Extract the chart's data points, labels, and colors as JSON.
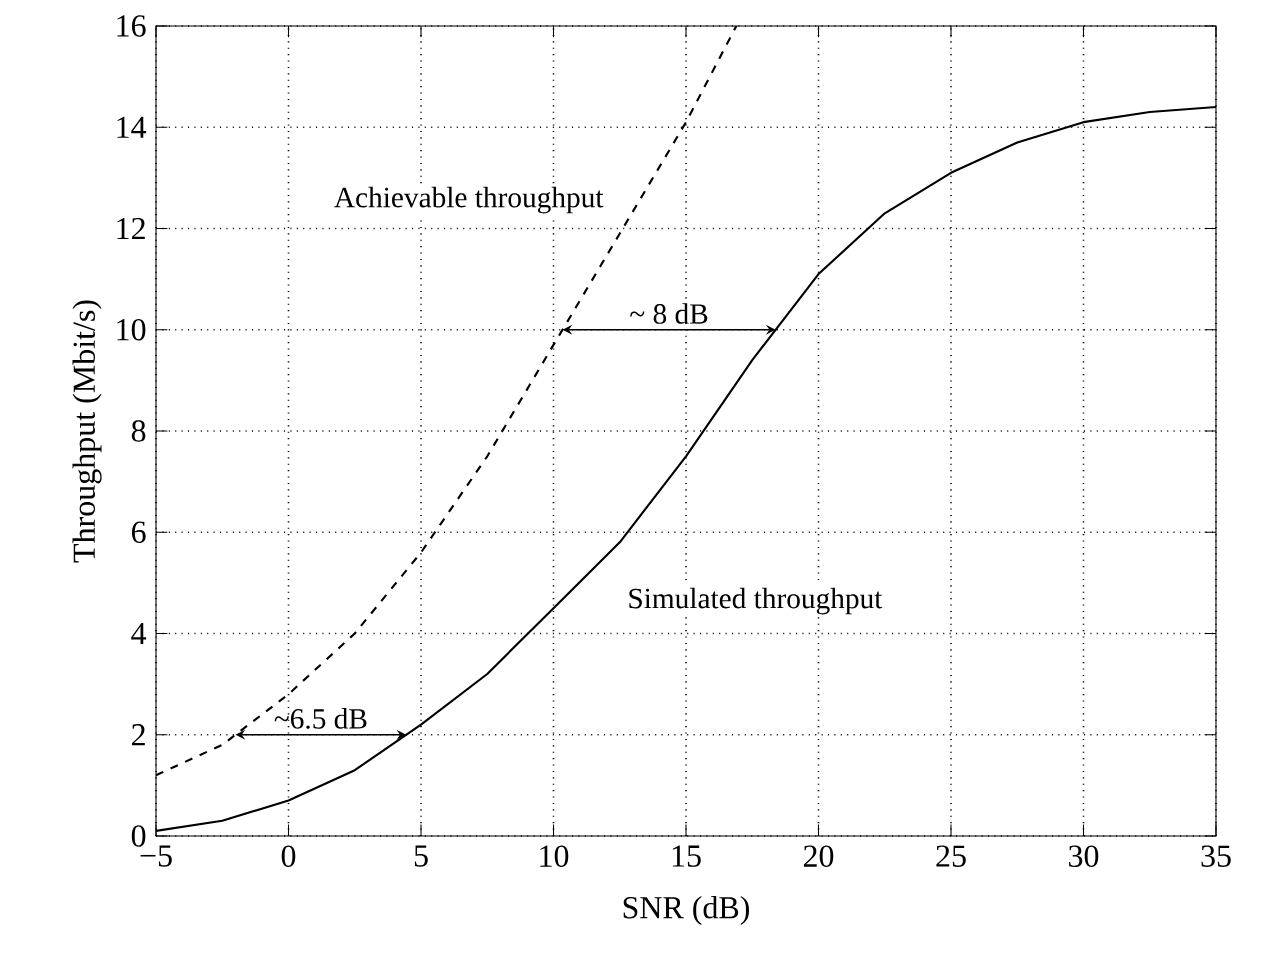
{
  "chart_data": {
    "type": "line",
    "xlabel": "SNR (dB)",
    "ylabel": "Throughput (Mbit/s)",
    "xlim": [
      -5,
      35
    ],
    "ylim": [
      0,
      16
    ],
    "xticks": [
      {
        "value": -5,
        "label": "−5"
      },
      0,
      5,
      10,
      15,
      20,
      25,
      30,
      35
    ],
    "yticks": [
      0,
      2,
      4,
      6,
      8,
      10,
      12,
      14,
      16
    ],
    "grid": true,
    "marker": "none",
    "series": [
      {
        "color": "#000000",
        "line_style": "dashed",
        "x": [
          -5,
          -2.5,
          0,
          2.5,
          5,
          7.5,
          10,
          12.5,
          15,
          16.9
        ],
        "values": [
          1.2,
          1.8,
          2.8,
          4.0,
          5.6,
          7.5,
          9.7,
          11.9,
          14.1,
          16
        ]
      },
      {
        "color": "#000000",
        "line_style": "solid",
        "x": [
          -5,
          -2.5,
          0,
          2.5,
          5,
          7.5,
          10,
          12.5,
          15,
          17.5,
          20,
          22.5,
          25,
          27.5,
          30,
          32.5,
          35
        ],
        "values": [
          0.1,
          0.3,
          0.7,
          1.3,
          2.2,
          3.2,
          4.5,
          5.8,
          7.5,
          9.4,
          11.1,
          12.3,
          13.1,
          13.7,
          14.1,
          14.3,
          14.4
        ]
      }
    ],
    "annotations": [
      "Achievable throughput",
      "Simulated throughput",
      "~ 8 dB",
      "~6.5 dB"
    ]
  }
}
